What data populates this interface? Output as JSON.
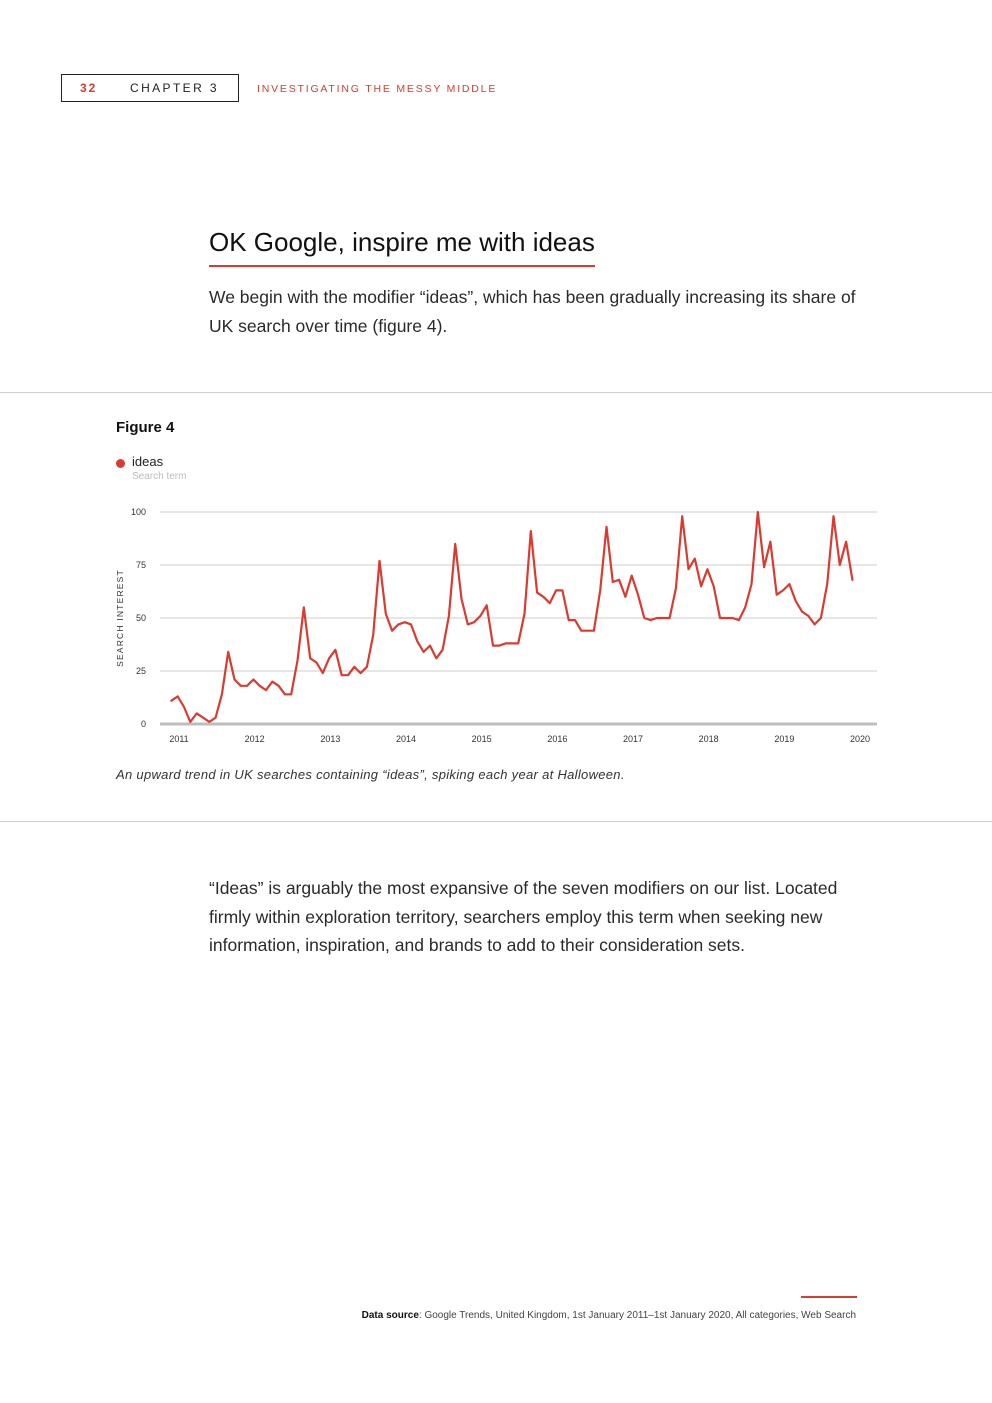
{
  "header": {
    "page_number": "32",
    "chapter": "CHAPTER 3",
    "section": "INVESTIGATING THE MESSY MIDDLE"
  },
  "heading": "OK Google, inspire me with ideas",
  "intro": "We begin with the modifier “ideas”, which has been gradually increasing its share of UK search over time (figure 4).",
  "figure": {
    "label": "Figure 4",
    "legend_name": "ideas",
    "legend_sub": "Search term",
    "caption": "An upward trend in UK searches containing “ideas”, spiking each year at Halloween."
  },
  "body": "“Ideas” is arguably the most expansive of the seven modifiers on our list. Located firmly within exploration territory, searchers employ this term when seeking new information, inspiration, and brands to add to their consideration sets.",
  "source": {
    "label": "Data source",
    "text": ": Google Trends, United Kingdom, 1st January 2011–1st January 2020, All categories, Web Search"
  },
  "colors": {
    "accent": "#d93b30",
    "grid": "#cccccc",
    "axis": "#bdbdbd"
  },
  "chart_data": {
    "type": "line",
    "title": "",
    "xlabel": "",
    "ylabel": "SEARCH INTEREST",
    "ylim": [
      0,
      100
    ],
    "yticks": [
      0,
      25,
      50,
      75,
      100
    ],
    "xlim": [
      2011,
      2020
    ],
    "xticks": [
      "2011",
      "2012",
      "2013",
      "2014",
      "2015",
      "2016",
      "2017",
      "2018",
      "2019",
      "2020"
    ],
    "series": [
      {
        "name": "ideas",
        "color": "#d93b30",
        "start": 2010.9,
        "step": 0.08333,
        "values": [
          11,
          13,
          8,
          1,
          5,
          3,
          1,
          3,
          14,
          34,
          21,
          18,
          18,
          21,
          18,
          16,
          20,
          18,
          14,
          14,
          30,
          55,
          31,
          29,
          24,
          31,
          35,
          23,
          23,
          27,
          24,
          27,
          42,
          77,
          52,
          44,
          47,
          48,
          47,
          39,
          34,
          37,
          31,
          35,
          51,
          85,
          59,
          47,
          48,
          51,
          56,
          37,
          37,
          38,
          38,
          38,
          52,
          91,
          62,
          60,
          57,
          63,
          63,
          49,
          49,
          44,
          44,
          44,
          63,
          93,
          67,
          68,
          60,
          70,
          61,
          50,
          49,
          50,
          50,
          50,
          64,
          98,
          73,
          78,
          65,
          73,
          65,
          50,
          50,
          50,
          49,
          55,
          66,
          100,
          74,
          86,
          61,
          63,
          66,
          58,
          53,
          51,
          47,
          50,
          66,
          98,
          75,
          86,
          68
        ]
      }
    ]
  }
}
